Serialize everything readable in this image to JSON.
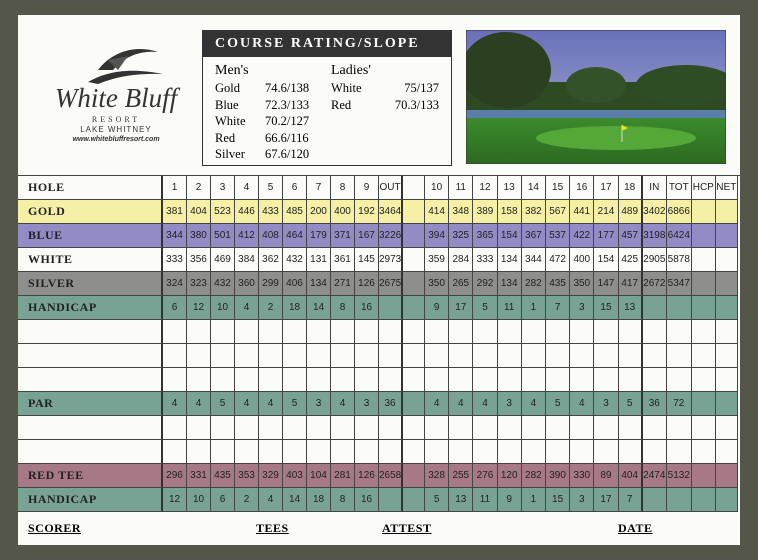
{
  "logo": {
    "name": "White Bluff",
    "resort": "RESORT",
    "lake": "LAKE WHITNEY",
    "url": "www.whitebluffresort.com"
  },
  "rating": {
    "title": "COURSE RATING/SLOPE",
    "mens_label": "Men's",
    "ladies_label": "Ladies'",
    "mens": [
      [
        "Gold",
        "74.6/138"
      ],
      [
        "Blue",
        "72.3/133"
      ],
      [
        "White",
        "70.2/127"
      ],
      [
        "Red",
        "66.6/116"
      ],
      [
        "Silver",
        "67.6/120"
      ]
    ],
    "ladies": [
      [
        "White",
        "75/137"
      ],
      [
        "Red",
        "70.3/133"
      ]
    ]
  },
  "table": {
    "header": {
      "label": "HOLE",
      "front": [
        1,
        2,
        3,
        4,
        5,
        6,
        7,
        8,
        9
      ],
      "out": "OUT",
      "back": [
        10,
        11,
        12,
        13,
        14,
        15,
        16,
        17,
        18
      ],
      "in": "IN",
      "tot": "TOT",
      "hcp": "HCP",
      "net": "NET"
    },
    "rows": [
      {
        "label": "GOLD",
        "front": [
          381,
          404,
          523,
          446,
          433,
          485,
          200,
          400,
          192
        ],
        "out": 3464,
        "back": [
          414,
          348,
          389,
          158,
          382,
          567,
          441,
          214,
          489
        ],
        "in": 3402,
        "tot": 6866
      },
      {
        "label": "BLUE",
        "front": [
          344,
          380,
          501,
          412,
          408,
          464,
          179,
          371,
          167
        ],
        "out": 3226,
        "back": [
          394,
          325,
          365,
          154,
          367,
          537,
          422,
          177,
          457
        ],
        "in": 3198,
        "tot": 6424
      },
      {
        "label": "WHITE",
        "front": [
          333,
          356,
          469,
          384,
          362,
          432,
          131,
          361,
          145
        ],
        "out": 2973,
        "back": [
          359,
          284,
          333,
          134,
          344,
          472,
          400,
          154,
          425
        ],
        "in": 2905,
        "tot": 5878
      },
      {
        "label": "SILVER",
        "front": [
          324,
          323,
          432,
          360,
          299,
          406,
          134,
          271,
          126
        ],
        "out": 2675,
        "back": [
          350,
          265,
          292,
          134,
          282,
          435,
          350,
          147,
          417
        ],
        "in": 2672,
        "tot": 5347
      },
      {
        "label": "HANDICAP",
        "front": [
          6,
          12,
          10,
          4,
          2,
          18,
          14,
          8,
          16
        ],
        "back": [
          9,
          17,
          5,
          11,
          1,
          7,
          3,
          15,
          13
        ]
      },
      {
        "label": "PAR",
        "front": [
          4,
          4,
          5,
          4,
          4,
          5,
          3,
          4,
          3
        ],
        "out": 36,
        "back": [
          4,
          4,
          4,
          3,
          4,
          5,
          4,
          3,
          5
        ],
        "in": 36,
        "tot": 72
      },
      {
        "label": "RED TEE",
        "front": [
          296,
          331,
          435,
          353,
          329,
          403,
          104,
          281,
          126
        ],
        "out": 2658,
        "back": [
          328,
          255,
          276,
          120,
          282,
          390,
          330,
          89,
          404
        ],
        "in": 2474,
        "tot": 5132
      },
      {
        "label": "HANDICAP",
        "front": [
          12,
          10,
          6,
          2,
          4,
          14,
          18,
          8,
          16
        ],
        "back": [
          5,
          13,
          11,
          9,
          1,
          15,
          3,
          17,
          7
        ]
      }
    ]
  },
  "footer": {
    "scorer": "SCORER",
    "tees": "TEES",
    "attest": "ATTEST",
    "date": "DATE"
  }
}
